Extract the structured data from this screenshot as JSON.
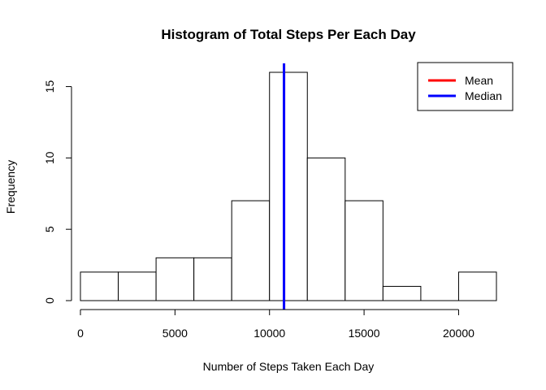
{
  "chart_data": {
    "type": "bar",
    "title": "Histogram of Total Steps Per Each Day",
    "xlabel": "Number of Steps Taken Each Day",
    "ylabel": "Frequency",
    "bins": [
      {
        "start": 0,
        "end": 2000,
        "count": 2
      },
      {
        "start": 2000,
        "end": 4000,
        "count": 2
      },
      {
        "start": 4000,
        "end": 6000,
        "count": 3
      },
      {
        "start": 6000,
        "end": 8000,
        "count": 3
      },
      {
        "start": 8000,
        "end": 10000,
        "count": 7
      },
      {
        "start": 10000,
        "end": 12000,
        "count": 16
      },
      {
        "start": 12000,
        "end": 14000,
        "count": 10
      },
      {
        "start": 14000,
        "end": 16000,
        "count": 7
      },
      {
        "start": 16000,
        "end": 18000,
        "count": 1
      },
      {
        "start": 18000,
        "end": 20000,
        "count": 0
      },
      {
        "start": 20000,
        "end": 22000,
        "count": 2
      }
    ],
    "xlim": [
      0,
      22000
    ],
    "ylim": [
      0,
      16
    ],
    "xticks": [
      "0",
      "5000",
      "10000",
      "15000",
      "20000"
    ],
    "yticks": [
      "0",
      "5",
      "10",
      "15"
    ],
    "reference_lines": [
      {
        "name": "Mean",
        "value": 10766,
        "color": "#ff0000"
      },
      {
        "name": "Median",
        "value": 10765,
        "color": "#0000ff"
      }
    ],
    "legend": {
      "position": "top-right",
      "entries": [
        {
          "label": "Mean",
          "color": "#ff0000"
        },
        {
          "label": "Median",
          "color": "#0000ff"
        }
      ]
    },
    "grid": false
  }
}
